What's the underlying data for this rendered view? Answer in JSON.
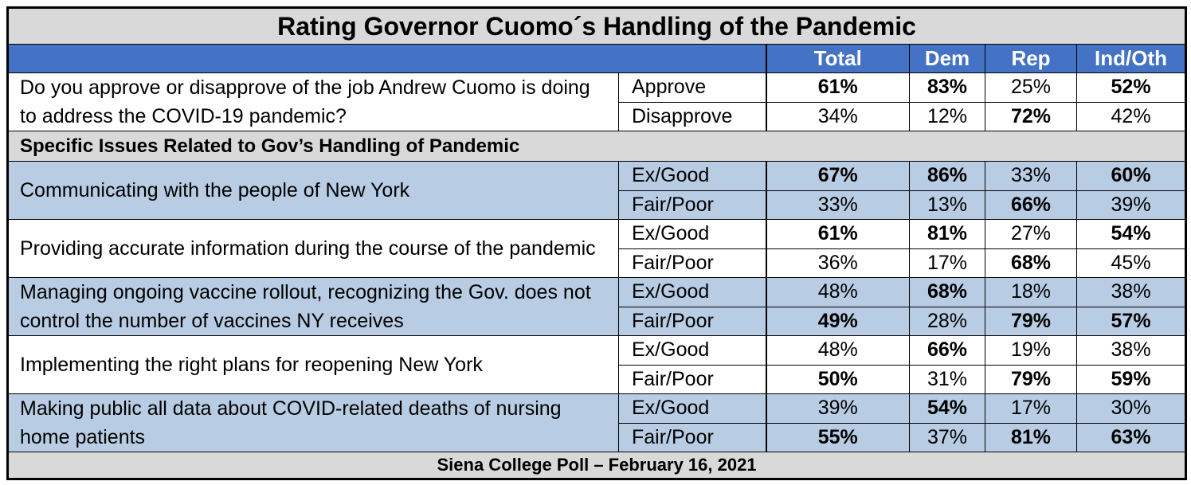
{
  "title": "Rating Governor Cuomo´s Handling of the Pandemic",
  "columns": [
    "Total",
    "Dem",
    "Rep",
    "Ind/Oth"
  ],
  "question": {
    "text": "Do you approve or disapprove of the job Andrew Cuomo is doing to address the COVID-19 pandemic?",
    "shaded": false,
    "rows": [
      {
        "label": "Approve",
        "values": [
          "61%",
          "83%",
          "25%",
          "52%"
        ],
        "bold": [
          true,
          true,
          false,
          true
        ]
      },
      {
        "label": "Disapprove",
        "values": [
          "34%",
          "12%",
          "72%",
          "42%"
        ],
        "bold": [
          false,
          false,
          true,
          false
        ]
      }
    ]
  },
  "section": "Specific Issues Related to Gov’s Handling of Pandemic",
  "issues": [
    {
      "text": "Communicating with the people of New York",
      "shaded": true,
      "rows": [
        {
          "label": "Ex/Good",
          "values": [
            "67%",
            "86%",
            "33%",
            "60%"
          ],
          "bold": [
            true,
            true,
            false,
            true
          ]
        },
        {
          "label": "Fair/Poor",
          "values": [
            "33%",
            "13%",
            "66%",
            "39%"
          ],
          "bold": [
            false,
            false,
            true,
            false
          ]
        }
      ]
    },
    {
      "text": "Providing accurate information during the course of the pandemic",
      "shaded": false,
      "rows": [
        {
          "label": "Ex/Good",
          "values": [
            "61%",
            "81%",
            "27%",
            "54%"
          ],
          "bold": [
            true,
            true,
            false,
            true
          ]
        },
        {
          "label": "Fair/Poor",
          "values": [
            "36%",
            "17%",
            "68%",
            "45%"
          ],
          "bold": [
            false,
            false,
            true,
            false
          ]
        }
      ]
    },
    {
      "text": "Managing ongoing vaccine rollout, recognizing the Gov. does not control the number of vaccines NY receives",
      "shaded": true,
      "rows": [
        {
          "label": "Ex/Good",
          "values": [
            "48%",
            "68%",
            "18%",
            "38%"
          ],
          "bold": [
            false,
            true,
            false,
            false
          ]
        },
        {
          "label": "Fair/Poor",
          "values": [
            "49%",
            "28%",
            "79%",
            "57%"
          ],
          "bold": [
            true,
            false,
            true,
            true
          ]
        }
      ]
    },
    {
      "text": "Implementing the right plans for reopening New York",
      "shaded": false,
      "rows": [
        {
          "label": "Ex/Good",
          "values": [
            "48%",
            "66%",
            "19%",
            "38%"
          ],
          "bold": [
            false,
            true,
            false,
            false
          ]
        },
        {
          "label": "Fair/Poor",
          "values": [
            "50%",
            "31%",
            "79%",
            "59%"
          ],
          "bold": [
            true,
            false,
            true,
            true
          ]
        }
      ]
    },
    {
      "text": "Making public all data about COVID-related deaths of nursing home patients",
      "shaded": true,
      "rows": [
        {
          "label": "Ex/Good",
          "values": [
            "39%",
            "54%",
            "17%",
            "30%"
          ],
          "bold": [
            false,
            true,
            false,
            false
          ]
        },
        {
          "label": "Fair/Poor",
          "values": [
            "55%",
            "37%",
            "81%",
            "63%"
          ],
          "bold": [
            true,
            false,
            true,
            true
          ]
        }
      ]
    }
  ],
  "footer": "Siena College Poll – February 16, 2021"
}
